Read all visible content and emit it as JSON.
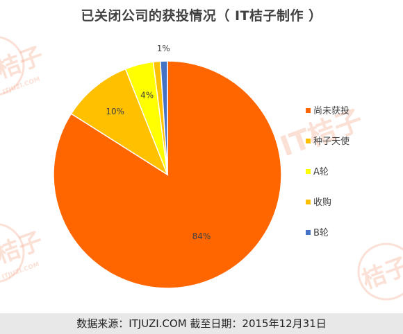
{
  "header": {
    "title": "已关闭公司的获投情况（ IT桔子制作 ）"
  },
  "footer": {
    "text": "数据来源：ITJUZI.COM  截至日期：2015年12月31日"
  },
  "watermark": {
    "brand": "IT桔子",
    "brand_short": "桔子",
    "site": "ITJUZI.COM"
  },
  "chart_data": {
    "type": "pie",
    "title": "已关闭公司的获投情况（ IT桔子制作 ）",
    "start_angle": "12 o'clock, clockwise",
    "legend_position": "right",
    "slices": [
      {
        "name": "尚未获投",
        "value": 84,
        "label": "84%",
        "color": "#ff6600"
      },
      {
        "name": "种子天使",
        "value": 10,
        "label": "10%",
        "color": "#ffc000"
      },
      {
        "name": "A轮",
        "value": 4,
        "label": "4%",
        "color": "#ffff00"
      },
      {
        "name": "收购",
        "value": 1,
        "label": "",
        "color": "#ffc000"
      },
      {
        "name": "B轮",
        "value": 1,
        "label": "1%",
        "color": "#4472c4"
      }
    ]
  }
}
